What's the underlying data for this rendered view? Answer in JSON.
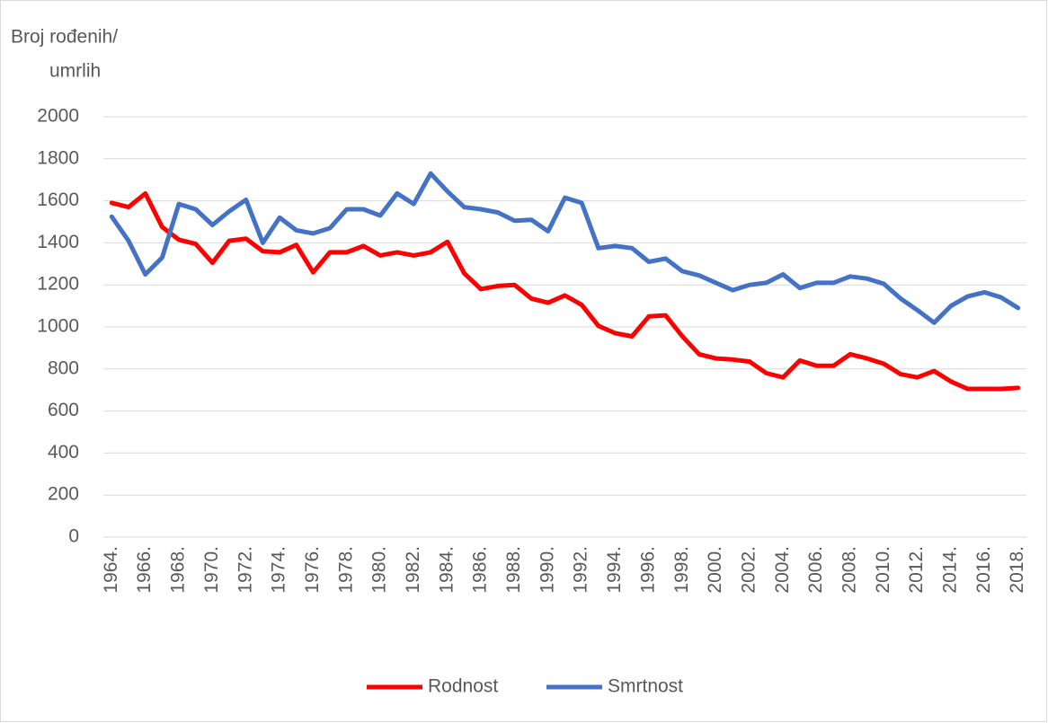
{
  "chart_data": {
    "type": "line",
    "ylabel": [
      "Broj rođenih/",
      "umrlih"
    ],
    "categories": [
      "1964.",
      null,
      "1966.",
      null,
      "1968.",
      null,
      "1970.",
      null,
      "1972.",
      null,
      "1974.",
      null,
      "1976.",
      null,
      "1978.",
      null,
      "1980.",
      null,
      "1982.",
      null,
      "1984.",
      null,
      "1986.",
      null,
      "1988.",
      null,
      "1990.",
      null,
      "1992.",
      null,
      "1994.",
      null,
      "1996.",
      null,
      "1998.",
      null,
      "2000.",
      null,
      "2002.",
      null,
      "2004.",
      null,
      "2006.",
      null,
      "2008.",
      null,
      "2010.",
      null,
      "2012.",
      null,
      "2014.",
      null,
      "2016.",
      null,
      "2018."
    ],
    "series": [
      {
        "name": "Rodnost",
        "color": "#ff0000",
        "values": [
          1590,
          1570,
          1635,
          1475,
          1415,
          1395,
          1305,
          1410,
          1420,
          1360,
          1355,
          1390,
          1260,
          1355,
          1355,
          1385,
          1340,
          1355,
          1340,
          1355,
          1405,
          1255,
          1180,
          1195,
          1200,
          1135,
          1115,
          1150,
          1105,
          1005,
          970,
          955,
          1050,
          1055,
          955,
          870,
          850,
          845,
          835,
          780,
          760,
          840,
          815,
          815,
          870,
          850,
          825,
          775,
          760,
          790,
          740,
          705,
          705,
          705,
          710
        ]
      },
      {
        "name": "Smrtnost",
        "color": "#4472c4",
        "values": [
          1525,
          1410,
          1250,
          1330,
          1585,
          1560,
          1485,
          1550,
          1605,
          1400,
          1520,
          1460,
          1445,
          1470,
          1560,
          1560,
          1530,
          1635,
          1585,
          1730,
          1645,
          1570,
          1560,
          1545,
          1505,
          1510,
          1455,
          1615,
          1590,
          1375,
          1385,
          1375,
          1310,
          1325,
          1265,
          1245,
          1210,
          1175,
          1200,
          1210,
          1250,
          1185,
          1210,
          1210,
          1240,
          1230,
          1205,
          1135,
          1080,
          1020,
          1100,
          1145,
          1165,
          1140,
          1090
        ]
      }
    ],
    "ylim": [
      0,
      2000
    ],
    "yticks": [
      0,
      200,
      400,
      600,
      800,
      1000,
      1200,
      1400,
      1600,
      1800,
      2000
    ],
    "grid": true,
    "legend": "bottom"
  }
}
